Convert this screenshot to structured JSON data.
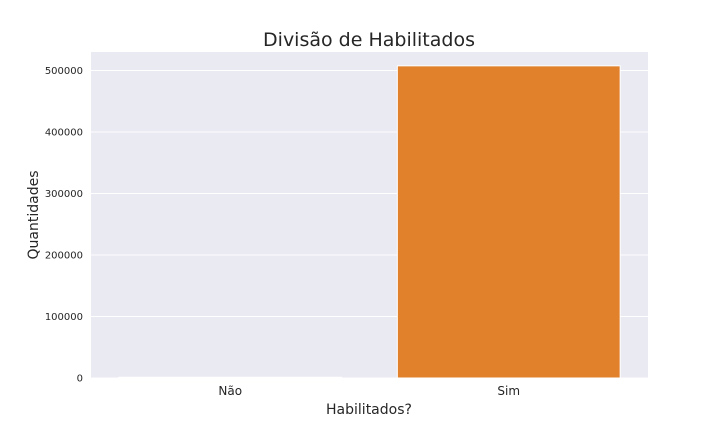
{
  "chart_data": {
    "type": "bar",
    "title": "Divisão de Habilitados",
    "xlabel": "Habilitados?",
    "ylabel": "Quantidades",
    "categories": [
      "Não",
      "Sim"
    ],
    "values": [
      1200,
      507500
    ],
    "colors": [
      "#3274a1",
      "#e1812c"
    ],
    "ylim": [
      0,
      530000
    ],
    "yticks": [
      0,
      100000,
      200000,
      300000,
      400000,
      500000
    ],
    "ytick_labels": [
      "0",
      "100000",
      "200000",
      "300000",
      "400000",
      "500000"
    ],
    "grid": true,
    "plot_background": "#eaeaf2",
    "grid_color": "#ffffff"
  }
}
